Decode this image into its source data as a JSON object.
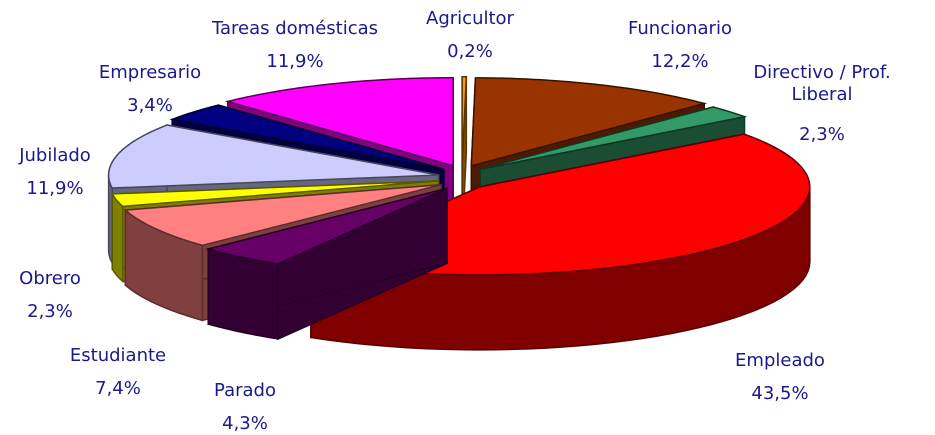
{
  "chart_data": {
    "type": "pie3d",
    "categories": [
      "Agricultor",
      "Funcionario",
      "Directivo / Prof. Liberal",
      "Empleado",
      "Parado",
      "Estudiante",
      "Obrero",
      "Jubilado",
      "Empresario",
      "Tareas domésticas"
    ],
    "values": [
      0.2,
      12.2,
      2.3,
      43.5,
      4.3,
      7.4,
      2.3,
      11.9,
      3.4,
      11.9
    ],
    "value_labels": [
      "0,2%",
      "12,2%",
      "2,3%",
      "43,5%",
      "4,3%",
      "7,4%",
      "2,3%",
      "11,9%",
      "3,4%",
      "11,9%"
    ],
    "colors": [
      "#ff9900",
      "#993300",
      "#339966",
      "#ff0000",
      "#660066",
      "#ff8080",
      "#ffff00",
      "#ccccff",
      "#000080",
      "#ff00ff"
    ]
  }
}
